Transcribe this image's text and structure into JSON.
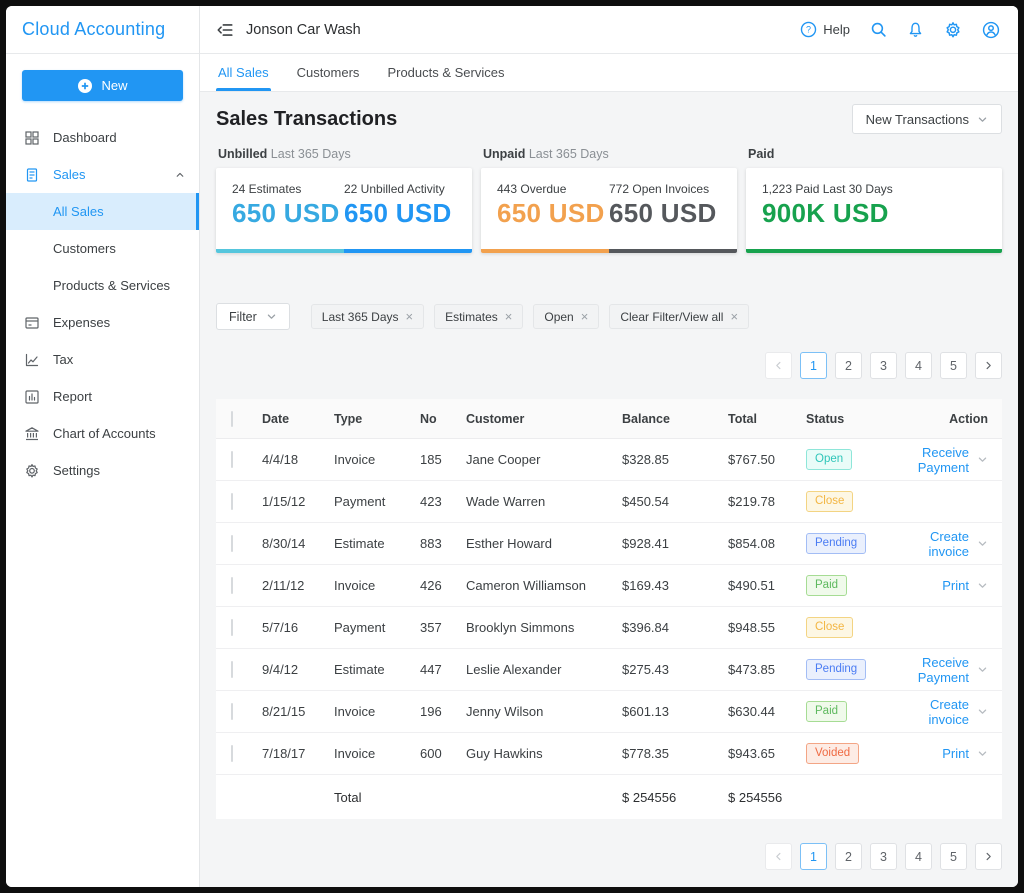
{
  "app": {
    "title": "Cloud Accounting"
  },
  "sidebar": {
    "new_button_label": "New",
    "items": [
      {
        "label": "Dashboard",
        "icon": "dashboard-icon"
      },
      {
        "label": "Sales",
        "icon": "sales-icon",
        "active": true,
        "expanded": true,
        "children": [
          "All Sales",
          "Customers",
          "Products & Services"
        ],
        "active_child": "All Sales"
      },
      {
        "label": "Expenses",
        "icon": "expenses-icon"
      },
      {
        "label": "Tax",
        "icon": "tax-icon"
      },
      {
        "label": "Report",
        "icon": "report-icon"
      },
      {
        "label": "Chart of Accounts",
        "icon": "bank-icon"
      },
      {
        "label": "Settings",
        "icon": "gear-icon"
      }
    ]
  },
  "header": {
    "company": "Jonson Car Wash",
    "help_label": "Help"
  },
  "tabs": [
    {
      "label": "All Sales",
      "active": true
    },
    {
      "label": "Customers",
      "active": false
    },
    {
      "label": "Products & Services",
      "active": false
    }
  ],
  "page": {
    "title": "Sales Transactions",
    "new_transactions_label": "New Transactions"
  },
  "cards": [
    {
      "label_bold": "Unbilled",
      "label_rest": " Last 365 Days",
      "stats": [
        {
          "caption": "24 Estimates",
          "value": "650 USD",
          "value_color": "#36a9e1",
          "bar_color": "#55c6dd"
        },
        {
          "caption": "22 Unbilled Activity",
          "value": "650 USD",
          "value_color": "#2196f3",
          "bar_color": "#2196f3"
        }
      ]
    },
    {
      "label_bold": "Unpaid",
      "label_rest": " Last 365 Days",
      "stats": [
        {
          "caption": "443 Overdue",
          "value": "650 USD",
          "value_color": "#f2a14e",
          "bar_color": "#f2a14e"
        },
        {
          "caption": "772 Open Invoices",
          "value": "650 USD",
          "value_color": "#55585c",
          "bar_color": "#55585c"
        }
      ]
    },
    {
      "label_bold": "Paid",
      "label_rest": "",
      "stats": [
        {
          "caption": "1,223 Paid Last 30 Days",
          "value": "900K USD",
          "value_color": "#17a24e",
          "bar_color": "#17a24e"
        }
      ]
    }
  ],
  "filters": {
    "button_label": "Filter",
    "chips": [
      "Last 365 Days",
      "Estimates",
      "Open",
      "Clear Filter/View all"
    ]
  },
  "pagination": {
    "pages": [
      "1",
      "2",
      "3",
      "4",
      "5"
    ],
    "active": "1"
  },
  "table": {
    "columns": [
      "Date",
      "Type",
      "No",
      "Customer",
      "Balance",
      "Total",
      "Status",
      "Action"
    ],
    "rows": [
      {
        "date": "4/4/18",
        "type": "Invoice",
        "no": "185",
        "customer": "Jane Cooper",
        "balance": "$328.85",
        "total": "$767.50",
        "status": "Open",
        "action": "Receive Payment"
      },
      {
        "date": "1/15/12",
        "type": "Payment",
        "no": "423",
        "customer": "Wade Warren",
        "balance": "$450.54",
        "total": "$219.78",
        "status": "Close",
        "action": ""
      },
      {
        "date": "8/30/14",
        "type": "Estimate",
        "no": "883",
        "customer": "Esther Howard",
        "balance": "$928.41",
        "total": "$854.08",
        "status": "Pending",
        "action": "Create invoice"
      },
      {
        "date": "2/11/12",
        "type": "Invoice",
        "no": "426",
        "customer": "Cameron Williamson",
        "balance": "$169.43",
        "total": "$490.51",
        "status": "Paid",
        "action": "Print"
      },
      {
        "date": "5/7/16",
        "type": "Payment",
        "no": "357",
        "customer": "Brooklyn Simmons",
        "balance": "$396.84",
        "total": "$948.55",
        "status": "Close",
        "action": ""
      },
      {
        "date": "9/4/12",
        "type": "Estimate",
        "no": "447",
        "customer": "Leslie Alexander",
        "balance": "$275.43",
        "total": "$473.85",
        "status": "Pending",
        "action": "Receive Payment"
      },
      {
        "date": "8/21/15",
        "type": "Invoice",
        "no": "196",
        "customer": "Jenny Wilson",
        "balance": "$601.13",
        "total": "$630.44",
        "status": "Paid",
        "action": "Create invoice"
      },
      {
        "date": "7/18/17",
        "type": "Invoice",
        "no": "600",
        "customer": "Guy Hawkins",
        "balance": "$778.35",
        "total": "$943.65",
        "status": "Voided",
        "action": "Print"
      }
    ],
    "total_row": {
      "label": "Total",
      "balance": "$ 254556",
      "total": "$ 254556"
    }
  },
  "status_colors": {
    "Open": {
      "fg": "#2fc5b9",
      "bg": "#e9fcf8",
      "border": "#8ee6d9"
    },
    "Close": {
      "fg": "#f3b643",
      "bg": "#fdf7e4",
      "border": "#f3d483"
    },
    "Pending": {
      "fg": "#4b7cf3",
      "bg": "#eaf0fd",
      "border": "#a3bdf5"
    },
    "Paid": {
      "fg": "#5eb95e",
      "bg": "#f0faeb",
      "border": "#a6dc94"
    },
    "Voided": {
      "fg": "#ef6a43",
      "bg": "#fdece5",
      "border": "#f3a585"
    }
  },
  "theme": {
    "primary": "#2196f3",
    "content_bg": "#f4f5f6",
    "frame": "#0e0e0e"
  }
}
